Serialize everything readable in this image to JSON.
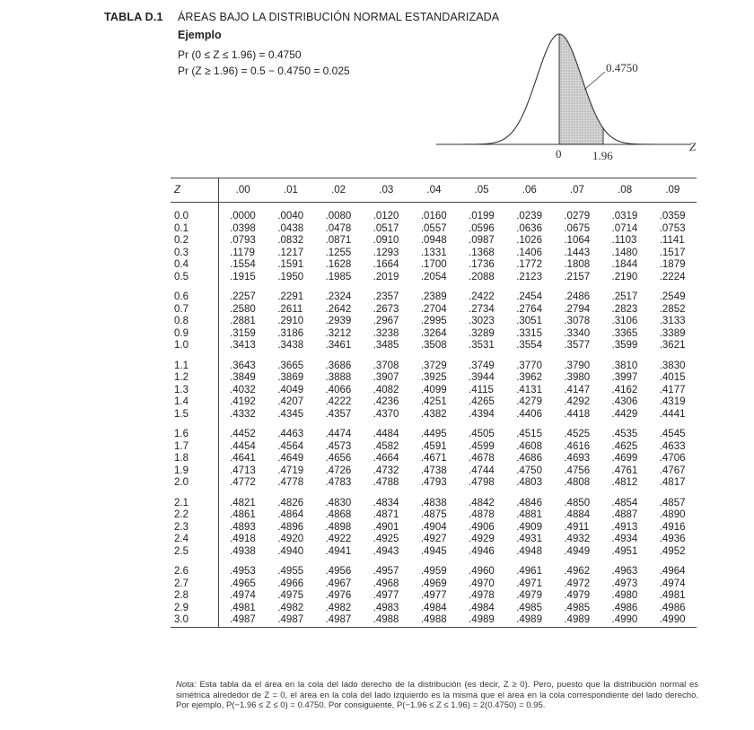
{
  "header": {
    "label": "TABLA D.1",
    "title": "ÁREAS BAJO LA DISTRIBUCIÓN NORMAL ESTANDARIZADA",
    "example_heading": "Ejemplo",
    "example_line1": "Pr (0 ≤ Z ≤ 1.96) = 0.4750",
    "example_line2": "Pr (Z ≥ 1.96) = 0.5 − 0.4750 = 0.025"
  },
  "figure": {
    "area_label": "0.4750",
    "axis_label": "Z",
    "tick_zero": "0",
    "tick_196": "1.96"
  },
  "table": {
    "headers": [
      "Z",
      ".00",
      ".01",
      ".02",
      ".03",
      ".04",
      ".05",
      ".06",
      ".07",
      ".08",
      ".09"
    ],
    "rows": [
      [
        "0.0",
        ".0000",
        ".0040",
        ".0080",
        ".0120",
        ".0160",
        ".0199",
        ".0239",
        ".0279",
        ".0319",
        ".0359"
      ],
      [
        "0.1",
        ".0398",
        ".0438",
        ".0478",
        ".0517",
        ".0557",
        ".0596",
        ".0636",
        ".0675",
        ".0714",
        ".0753"
      ],
      [
        "0.2",
        ".0793",
        ".0832",
        ".0871",
        ".0910",
        ".0948",
        ".0987",
        ".1026",
        ".1064",
        ".1103",
        ".1141"
      ],
      [
        "0.3",
        ".1179",
        ".1217",
        ".1255",
        ".1293",
        ".1331",
        ".1368",
        ".1406",
        ".1443",
        ".1480",
        ".1517"
      ],
      [
        "0.4",
        ".1554",
        ".1591",
        ".1628",
        ".1664",
        ".1700",
        ".1736",
        ".1772",
        ".1808",
        ".1844",
        ".1879"
      ],
      [
        "0.5",
        ".1915",
        ".1950",
        ".1985",
        ".2019",
        ".2054",
        ".2088",
        ".2123",
        ".2157",
        ".2190",
        ".2224"
      ],
      [
        "0.6",
        ".2257",
        ".2291",
        ".2324",
        ".2357",
        ".2389",
        ".2422",
        ".2454",
        ".2486",
        ".2517",
        ".2549"
      ],
      [
        "0.7",
        ".2580",
        ".2611",
        ".2642",
        ".2673",
        ".2704",
        ".2734",
        ".2764",
        ".2794",
        ".2823",
        ".2852"
      ],
      [
        "0.8",
        ".2881",
        ".2910",
        ".2939",
        ".2967",
        ".2995",
        ".3023",
        ".3051",
        ".3078",
        ".3106",
        ".3133"
      ],
      [
        "0.9",
        ".3159",
        ".3186",
        ".3212",
        ".3238",
        ".3264",
        ".3289",
        ".3315",
        ".3340",
        ".3365",
        ".3389"
      ],
      [
        "1.0",
        ".3413",
        ".3438",
        ".3461",
        ".3485",
        ".3508",
        ".3531",
        ".3554",
        ".3577",
        ".3599",
        ".3621"
      ],
      [
        "1.1",
        ".3643",
        ".3665",
        ".3686",
        ".3708",
        ".3729",
        ".3749",
        ".3770",
        ".3790",
        ".3810",
        ".3830"
      ],
      [
        "1.2",
        ".3849",
        ".3869",
        ".3888",
        ".3907",
        ".3925",
        ".3944",
        ".3962",
        ".3980",
        ".3997",
        ".4015"
      ],
      [
        "1.3",
        ".4032",
        ".4049",
        ".4066",
        ".4082",
        ".4099",
        ".4115",
        ".4131",
        ".4147",
        ".4162",
        ".4177"
      ],
      [
        "1.4",
        ".4192",
        ".4207",
        ".4222",
        ".4236",
        ".4251",
        ".4265",
        ".4279",
        ".4292",
        ".4306",
        ".4319"
      ],
      [
        "1.5",
        ".4332",
        ".4345",
        ".4357",
        ".4370",
        ".4382",
        ".4394",
        ".4406",
        ".4418",
        ".4429",
        ".4441"
      ],
      [
        "1.6",
        ".4452",
        ".4463",
        ".4474",
        ".4484",
        ".4495",
        ".4505",
        ".4515",
        ".4525",
        ".4535",
        ".4545"
      ],
      [
        "1.7",
        ".4454",
        ".4564",
        ".4573",
        ".4582",
        ".4591",
        ".4599",
        ".4608",
        ".4616",
        ".4625",
        ".4633"
      ],
      [
        "1.8",
        ".4641",
        ".4649",
        ".4656",
        ".4664",
        ".4671",
        ".4678",
        ".4686",
        ".4693",
        ".4699",
        ".4706"
      ],
      [
        "1.9",
        ".4713",
        ".4719",
        ".4726",
        ".4732",
        ".4738",
        ".4744",
        ".4750",
        ".4756",
        ".4761",
        ".4767"
      ],
      [
        "2.0",
        ".4772",
        ".4778",
        ".4783",
        ".4788",
        ".4793",
        ".4798",
        ".4803",
        ".4808",
        ".4812",
        ".4817"
      ],
      [
        "2.1",
        ".4821",
        ".4826",
        ".4830",
        ".4834",
        ".4838",
        ".4842",
        ".4846",
        ".4850",
        ".4854",
        ".4857"
      ],
      [
        "2.2",
        ".4861",
        ".4864",
        ".4868",
        ".4871",
        ".4875",
        ".4878",
        ".4881",
        ".4884",
        ".4887",
        ".4890"
      ],
      [
        "2.3",
        ".4893",
        ".4896",
        ".4898",
        ".4901",
        ".4904",
        ".4906",
        ".4909",
        ".4911",
        ".4913",
        ".4916"
      ],
      [
        "2.4",
        ".4918",
        ".4920",
        ".4922",
        ".4925",
        ".4927",
        ".4929",
        ".4931",
        ".4932",
        ".4934",
        ".4936"
      ],
      [
        "2.5",
        ".4938",
        ".4940",
        ".4941",
        ".4943",
        ".4945",
        ".4946",
        ".4948",
        ".4949",
        ".4951",
        ".4952"
      ],
      [
        "2.6",
        ".4953",
        ".4955",
        ".4956",
        ".4957",
        ".4959",
        ".4960",
        ".4961",
        ".4962",
        ".4963",
        ".4964"
      ],
      [
        "2.7",
        ".4965",
        ".4966",
        ".4967",
        ".4968",
        ".4969",
        ".4970",
        ".4971",
        ".4972",
        ".4973",
        ".4974"
      ],
      [
        "2.8",
        ".4974",
        ".4975",
        ".4976",
        ".4977",
        ".4977",
        ".4978",
        ".4979",
        ".4979",
        ".4980",
        ".4981"
      ],
      [
        "2.9",
        ".4981",
        ".4982",
        ".4982",
        ".4983",
        ".4984",
        ".4984",
        ".4985",
        ".4985",
        ".4986",
        ".4986"
      ],
      [
        "3.0",
        ".4987",
        ".4987",
        ".4987",
        ".4988",
        ".4988",
        ".4989",
        ".4989",
        ".4989",
        ".4990",
        ".4990"
      ]
    ]
  },
  "note": {
    "label": "Nota:",
    "text": "Esta tabla da el área en la cola del lado derecho de la distribución (es decir, Z ≥ 0). Pero, puesto que la distribución normal es simétrica alrededor de Z = 0, el área en la cola del lado izquierdo es la misma que el área en la cola correspondiente del lado derecho. Por ejemplo, P(−1.96 ≤ Z ≤ 0) = 0.4750. Por consiguiente, P(−1.96 ≤ Z ≤ 1.96) = 2(0.4750) = 0.95."
  }
}
